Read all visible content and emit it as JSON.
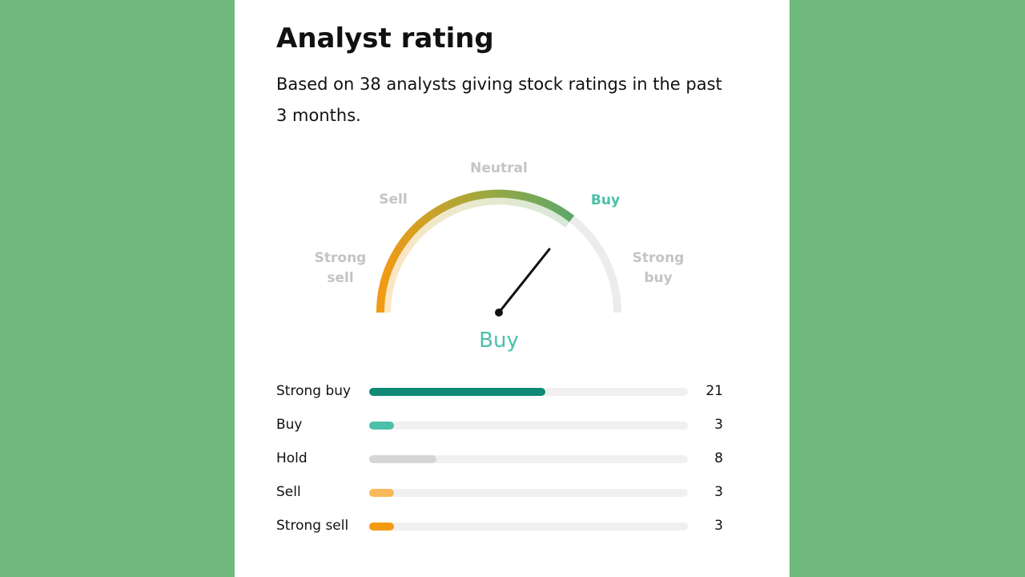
{
  "header": {
    "title": "Analyst rating",
    "subtitle": "Based on 38 analysts giving stock ratings in the past 3 months."
  },
  "gauge": {
    "labels": [
      "Strong sell",
      "Sell",
      "Neutral",
      "Buy",
      "Strong buy"
    ],
    "result": "Buy"
  },
  "ratings": [
    {
      "label": "Strong buy",
      "count": 21,
      "color": "#0e8a76"
    },
    {
      "label": "Buy",
      "count": 3,
      "color": "#4cc0a8"
    },
    {
      "label": "Hold",
      "count": 8,
      "color": "#d6d6d6"
    },
    {
      "label": "Sell",
      "count": 3,
      "color": "#f9b85a"
    },
    {
      "label": "Strong sell",
      "count": 3,
      "color": "#f39a14"
    }
  ]
}
